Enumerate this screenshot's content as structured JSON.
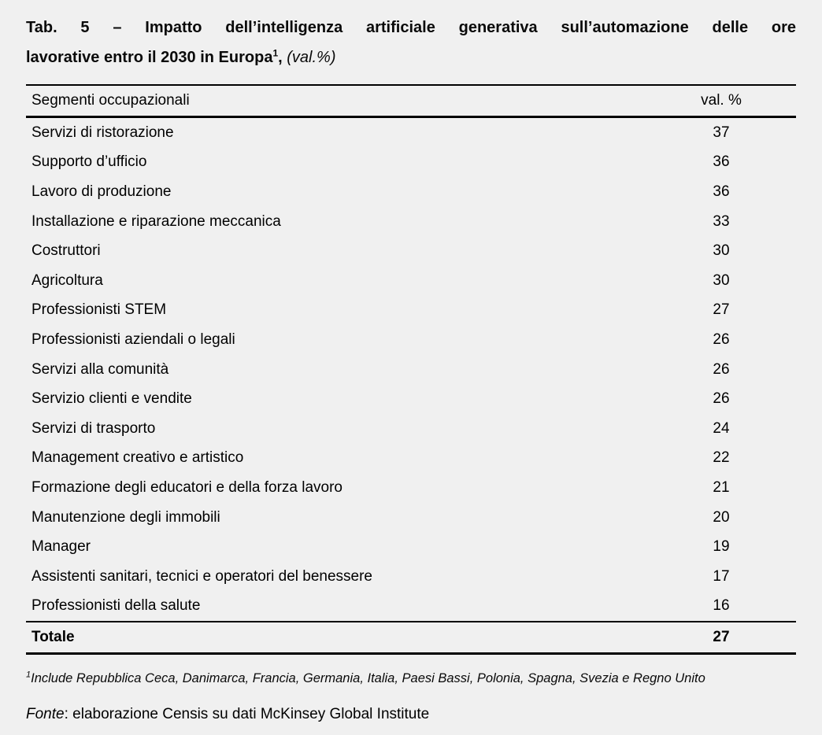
{
  "page": {
    "background": "#f0f0f0",
    "text_color": "#000000"
  },
  "title": {
    "line1": "Tab. 5 – Impatto dell’intelligenza artificiale generativa sull’automazione delle ore",
    "line2": "lavorative entro il 2030 in Europa",
    "footnote_marker": "1",
    "after_marker": ", ",
    "unit_note": "(val.%)"
  },
  "table": {
    "header": {
      "segment": "Segmenti occupazionali",
      "value": "val. %"
    },
    "rows": [
      {
        "label": "Servizi di ristorazione",
        "value": "37"
      },
      {
        "label": "Supporto d’ufficio",
        "value": "36"
      },
      {
        "label": "Lavoro di produzione",
        "value": "36"
      },
      {
        "label": "Installazione e riparazione meccanica",
        "value": "33"
      },
      {
        "label": "Costruttori",
        "value": "30"
      },
      {
        "label": "Agricoltura",
        "value": "30"
      },
      {
        "label": "Professionisti STEM",
        "value": "27"
      },
      {
        "label": "Professionisti aziendali o legali",
        "value": "26"
      },
      {
        "label": "Servizi alla comunità",
        "value": "26"
      },
      {
        "label": "Servizio clienti e vendite",
        "value": "26"
      },
      {
        "label": "Servizi di trasporto",
        "value": "24"
      },
      {
        "label": "Management creativo e artistico",
        "value": "22"
      },
      {
        "label": "Formazione degli educatori e della forza lavoro",
        "value": "21"
      },
      {
        "label": "Manutenzione degli immobili",
        "value": "20"
      },
      {
        "label": "Manager",
        "value": "19"
      },
      {
        "label": "Assistenti sanitari, tecnici e operatori del benessere",
        "value": "17"
      },
      {
        "label": "Professionisti della salute",
        "value": "16"
      }
    ],
    "total": {
      "label": "Totale",
      "value": "27"
    }
  },
  "footnote": {
    "marker": "1",
    "text": "Include Repubblica Ceca, Danimarca, Francia, Germania, Italia, Paesi Bassi, Polonia, Spagna, Svezia e Regno Unito"
  },
  "source": {
    "label": "Fonte",
    "text": ": elaborazione Censis su dati McKinsey Global Institute"
  }
}
